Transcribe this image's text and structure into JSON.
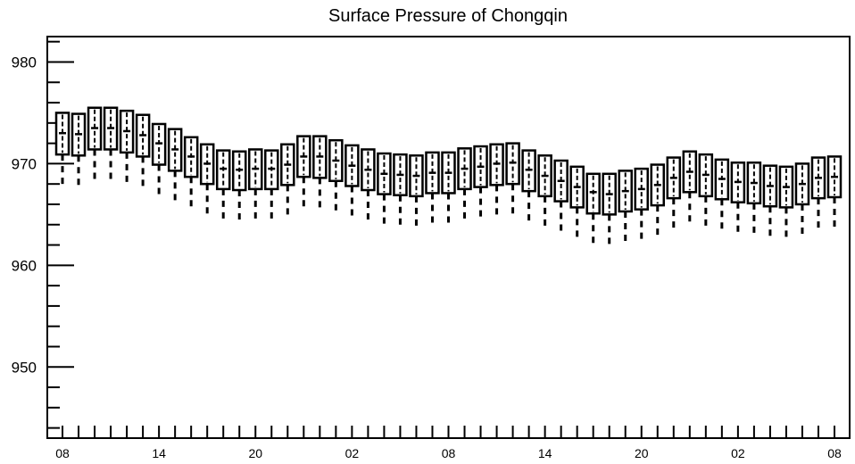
{
  "chart_data": {
    "type": "box",
    "title": "Surface Pressure of Chongqin",
    "xlabel": "",
    "ylabel": "",
    "ylim": [
      943,
      982.5
    ],
    "yticks": [
      950,
      960,
      970,
      980
    ],
    "xtick_labels": [
      "08",
      "14",
      "20",
      "02",
      "08",
      "14",
      "20",
      "02",
      "08"
    ],
    "grid": false,
    "series": [
      {
        "boxes": [
          {
            "x": 0,
            "lo": 967.8,
            "q1": 970.9,
            "med": 973.0,
            "q3": 975.0
          },
          {
            "x": 1,
            "lo": 967.8,
            "q1": 970.8,
            "med": 972.9,
            "q3": 974.9
          },
          {
            "x": 2,
            "lo": 968.3,
            "q1": 971.4,
            "med": 973.5,
            "q3": 975.5
          },
          {
            "x": 3,
            "lo": 968.3,
            "q1": 971.4,
            "med": 973.5,
            "q3": 975.5
          },
          {
            "x": 4,
            "lo": 968.0,
            "q1": 971.1,
            "med": 973.2,
            "q3": 975.2
          },
          {
            "x": 5,
            "lo": 967.7,
            "q1": 970.7,
            "med": 972.8,
            "q3": 974.8
          },
          {
            "x": 6,
            "lo": 966.9,
            "q1": 969.9,
            "med": 972.0,
            "q3": 973.9
          },
          {
            "x": 7,
            "lo": 966.2,
            "q1": 969.3,
            "med": 971.4,
            "q3": 973.4
          },
          {
            "x": 8,
            "lo": 965.6,
            "q1": 968.7,
            "med": 970.7,
            "q3": 972.6
          },
          {
            "x": 9,
            "lo": 964.9,
            "q1": 968.0,
            "med": 970.0,
            "q3": 971.9
          },
          {
            "x": 10,
            "lo": 964.4,
            "q1": 967.5,
            "med": 969.5,
            "q3": 971.3
          },
          {
            "x": 11,
            "lo": 964.3,
            "q1": 967.4,
            "med": 969.4,
            "q3": 971.2
          },
          {
            "x": 12,
            "lo": 964.4,
            "q1": 967.5,
            "med": 969.5,
            "q3": 971.4
          },
          {
            "x": 13,
            "lo": 964.4,
            "q1": 967.5,
            "med": 969.5,
            "q3": 971.3
          },
          {
            "x": 14,
            "lo": 964.8,
            "q1": 967.9,
            "med": 969.9,
            "q3": 971.9
          },
          {
            "x": 15,
            "lo": 965.5,
            "q1": 968.7,
            "med": 970.7,
            "q3": 972.7
          },
          {
            "x": 16,
            "lo": 965.6,
            "q1": 968.6,
            "med": 970.7,
            "q3": 972.7
          },
          {
            "x": 17,
            "lo": 965.3,
            "q1": 968.3,
            "med": 970.3,
            "q3": 972.3
          },
          {
            "x": 18,
            "lo": 964.7,
            "q1": 967.8,
            "med": 969.8,
            "q3": 971.8
          },
          {
            "x": 19,
            "lo": 964.3,
            "q1": 967.4,
            "med": 969.4,
            "q3": 971.4
          },
          {
            "x": 20,
            "lo": 963.9,
            "q1": 967.0,
            "med": 969.0,
            "q3": 971.0
          },
          {
            "x": 21,
            "lo": 963.8,
            "q1": 966.9,
            "med": 968.9,
            "q3": 970.9
          },
          {
            "x": 22,
            "lo": 963.7,
            "q1": 966.8,
            "med": 968.8,
            "q3": 970.8
          },
          {
            "x": 23,
            "lo": 964.0,
            "q1": 967.1,
            "med": 969.1,
            "q3": 971.1
          },
          {
            "x": 24,
            "lo": 964.0,
            "q1": 967.1,
            "med": 969.1,
            "q3": 971.1
          },
          {
            "x": 25,
            "lo": 964.3,
            "q1": 967.5,
            "med": 969.5,
            "q3": 971.5
          },
          {
            "x": 26,
            "lo": 964.6,
            "q1": 967.7,
            "med": 969.7,
            "q3": 971.7
          },
          {
            "x": 27,
            "lo": 964.9,
            "q1": 967.9,
            "med": 970.0,
            "q3": 971.9
          },
          {
            "x": 28,
            "lo": 965.0,
            "q1": 968.0,
            "med": 970.1,
            "q3": 972.0
          },
          {
            "x": 29,
            "lo": 964.3,
            "q1": 967.3,
            "med": 969.4,
            "q3": 971.3
          },
          {
            "x": 30,
            "lo": 963.7,
            "q1": 966.8,
            "med": 968.8,
            "q3": 970.8
          },
          {
            "x": 31,
            "lo": 963.2,
            "q1": 966.3,
            "med": 968.3,
            "q3": 970.3
          },
          {
            "x": 32,
            "lo": 962.6,
            "q1": 965.7,
            "med": 967.7,
            "q3": 969.7
          },
          {
            "x": 33,
            "lo": 962.0,
            "q1": 965.1,
            "med": 967.2,
            "q3": 969.0
          },
          {
            "x": 34,
            "lo": 962.0,
            "q1": 965.0,
            "med": 967.0,
            "q3": 969.0
          },
          {
            "x": 35,
            "lo": 962.2,
            "q1": 965.3,
            "med": 967.3,
            "q3": 969.3
          },
          {
            "x": 36,
            "lo": 962.4,
            "q1": 965.5,
            "med": 967.5,
            "q3": 969.5
          },
          {
            "x": 37,
            "lo": 962.9,
            "q1": 965.9,
            "med": 967.9,
            "q3": 969.9
          },
          {
            "x": 38,
            "lo": 963.6,
            "q1": 966.6,
            "med": 968.6,
            "q3": 970.6
          },
          {
            "x": 39,
            "lo": 964.1,
            "q1": 967.2,
            "med": 969.2,
            "q3": 971.2
          },
          {
            "x": 40,
            "lo": 963.8,
            "q1": 966.8,
            "med": 968.9,
            "q3": 970.9
          },
          {
            "x": 41,
            "lo": 963.5,
            "q1": 966.5,
            "med": 968.5,
            "q3": 970.4
          },
          {
            "x": 42,
            "lo": 963.1,
            "q1": 966.2,
            "med": 968.2,
            "q3": 970.1
          },
          {
            "x": 43,
            "lo": 963.1,
            "q1": 966.1,
            "med": 968.1,
            "q3": 970.1
          },
          {
            "x": 44,
            "lo": 962.7,
            "q1": 965.8,
            "med": 967.8,
            "q3": 969.8
          },
          {
            "x": 45,
            "lo": 962.6,
            "q1": 965.7,
            "med": 967.7,
            "q3": 969.7
          },
          {
            "x": 46,
            "lo": 962.9,
            "q1": 966.0,
            "med": 968.0,
            "q3": 970.0
          },
          {
            "x": 47,
            "lo": 963.5,
            "q1": 966.6,
            "med": 968.6,
            "q3": 970.6
          },
          {
            "x": 48,
            "lo": 963.6,
            "q1": 966.7,
            "med": 968.7,
            "q3": 970.7
          }
        ]
      }
    ]
  }
}
